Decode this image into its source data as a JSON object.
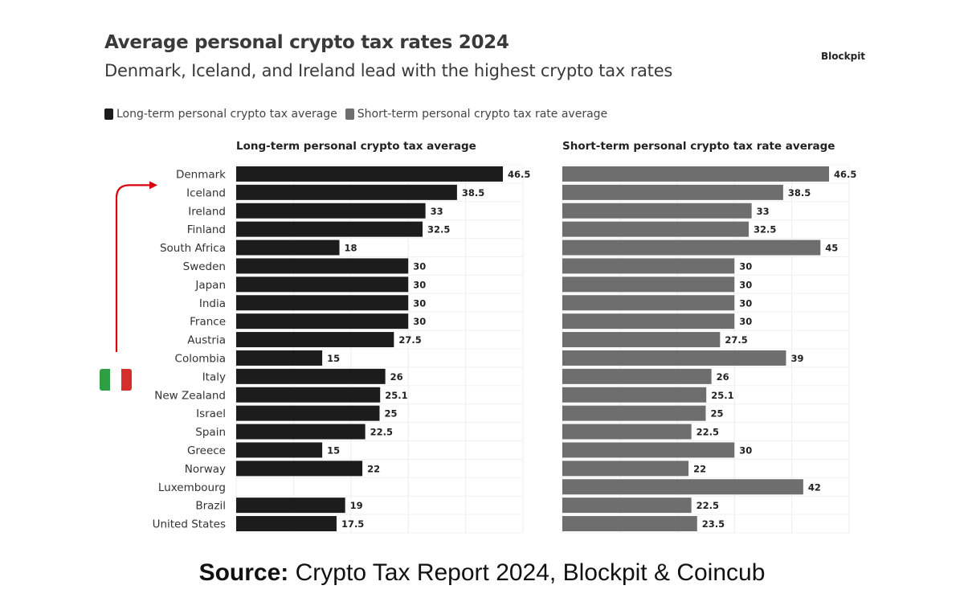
{
  "header": {
    "title": "Average personal crypto tax rates 2024",
    "subtitle": "Denmark, Iceland, and Ireland lead with the highest crypto tax rates",
    "brand": "Blockpit"
  },
  "legend": {
    "long_term": "Long-term personal crypto tax average",
    "short_term": "Short-term personal crypto tax rate average"
  },
  "colors": {
    "long_term": "#1c1c1c",
    "short_term": "#6e6e6e",
    "arrow": "#d9000d",
    "flag_green": "#2f9e44",
    "flag_white": "#ffffff",
    "flag_red": "#d62d2d"
  },
  "annotation": {
    "arrow_from": "Italy",
    "arrow_to": "Iceland",
    "flag_icon": "italy-flag-icon"
  },
  "source": {
    "label": "Source:",
    "text": "Crypto Tax Report 2024, Blockpit & Coincub"
  },
  "chart_data": {
    "type": "bar",
    "orientation": "horizontal",
    "categories": [
      "Denmark",
      "Iceland",
      "Ireland",
      "Finland",
      "South Africa",
      "Sweden",
      "Japan",
      "India",
      "France",
      "Austria",
      "Colombia",
      "Italy",
      "New Zealand",
      "Israel",
      "Spain",
      "Greece",
      "Norway",
      "Luxembourg",
      "Brazil",
      "United States"
    ],
    "series": [
      {
        "name": "Long-term personal crypto tax average",
        "values": [
          46.5,
          38.5,
          33,
          32.5,
          18,
          30,
          30,
          30,
          30,
          27.5,
          15,
          26,
          25.1,
          25,
          22.5,
          15,
          22,
          null,
          19,
          17.5
        ],
        "labels": [
          "46.5",
          "38.5",
          "33",
          "32.5",
          "18",
          "30",
          "30",
          "30",
          "30",
          "27.5",
          "15",
          "26",
          "25.1",
          "25",
          "22.5",
          "15",
          "22",
          "",
          "19",
          "17.5"
        ]
      },
      {
        "name": "Short-term personal crypto tax rate average",
        "values": [
          46.5,
          38.5,
          33,
          32.5,
          45,
          30,
          30,
          30,
          30,
          27.5,
          39,
          26,
          25.1,
          25,
          22.5,
          30,
          22,
          42,
          22.5,
          23.5
        ],
        "labels": [
          "46.5",
          "38.5",
          "33",
          "32.5",
          "45",
          "30",
          "30",
          "30",
          "30",
          "27.5",
          "39",
          "26",
          "25.1",
          "25",
          "22.5",
          "30",
          "22",
          "42",
          "22.5",
          "23.5"
        ]
      }
    ],
    "xlim": [
      0,
      50
    ],
    "grid": true,
    "legend_position": "top-left"
  }
}
